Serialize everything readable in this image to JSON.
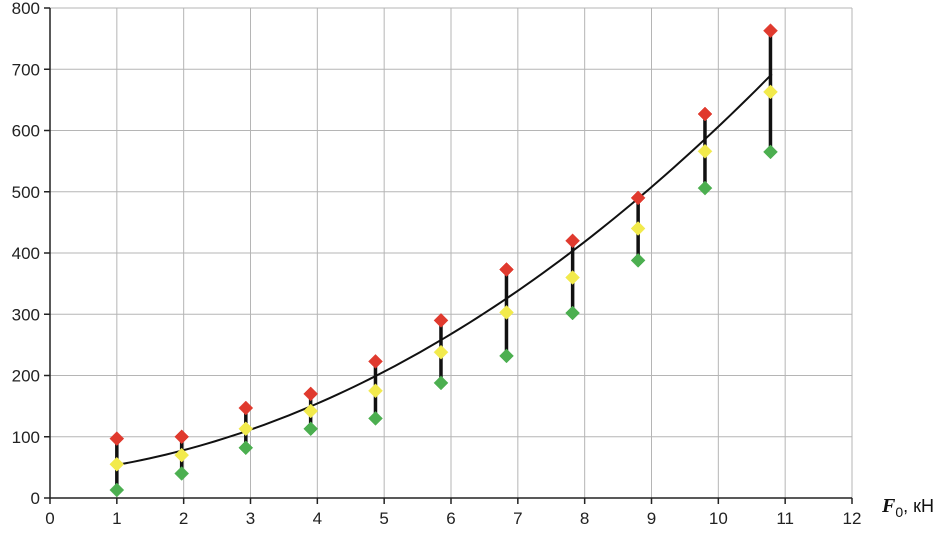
{
  "chart_data": {
    "type": "scatter",
    "title": "",
    "xlabel": {
      "symbol": "F",
      "subscript": "0",
      "unit": ", кН"
    },
    "ylabel": "",
    "xlim": [
      0,
      12
    ],
    "ylim": [
      0,
      800
    ],
    "x_ticks": [
      0,
      1,
      2,
      3,
      4,
      5,
      6,
      7,
      8,
      9,
      10,
      11,
      12
    ],
    "y_ticks": [
      0,
      100,
      200,
      300,
      400,
      500,
      600,
      700,
      800
    ],
    "grid": true,
    "legend": "none",
    "colors": {
      "upper": "#e03a2e",
      "mean": "#f2ea4c",
      "lower": "#4caf50",
      "range_bar": "#111111",
      "trend": "#111111",
      "grid": "#b5b5b5"
    },
    "x": [
      1.0,
      1.97,
      2.93,
      3.9,
      4.87,
      5.85,
      6.83,
      7.82,
      8.8,
      9.8,
      10.78
    ],
    "series": [
      {
        "role": "upper",
        "values": [
          97,
          100,
          147,
          170,
          223,
          290,
          373,
          420,
          490,
          627,
          763
        ]
      },
      {
        "role": "mean",
        "values": [
          55,
          70,
          113,
          142,
          175,
          238,
          303,
          360,
          440,
          566,
          663
        ]
      },
      {
        "role": "lower",
        "values": [
          13,
          40,
          82,
          113,
          130,
          188,
          232,
          302,
          388,
          506,
          565
        ]
      }
    ],
    "trend": {
      "type": "polynomial",
      "coefficients": [
        39.3,
        10.1,
        4.66
      ],
      "x_range": [
        1.0,
        10.8
      ]
    }
  }
}
